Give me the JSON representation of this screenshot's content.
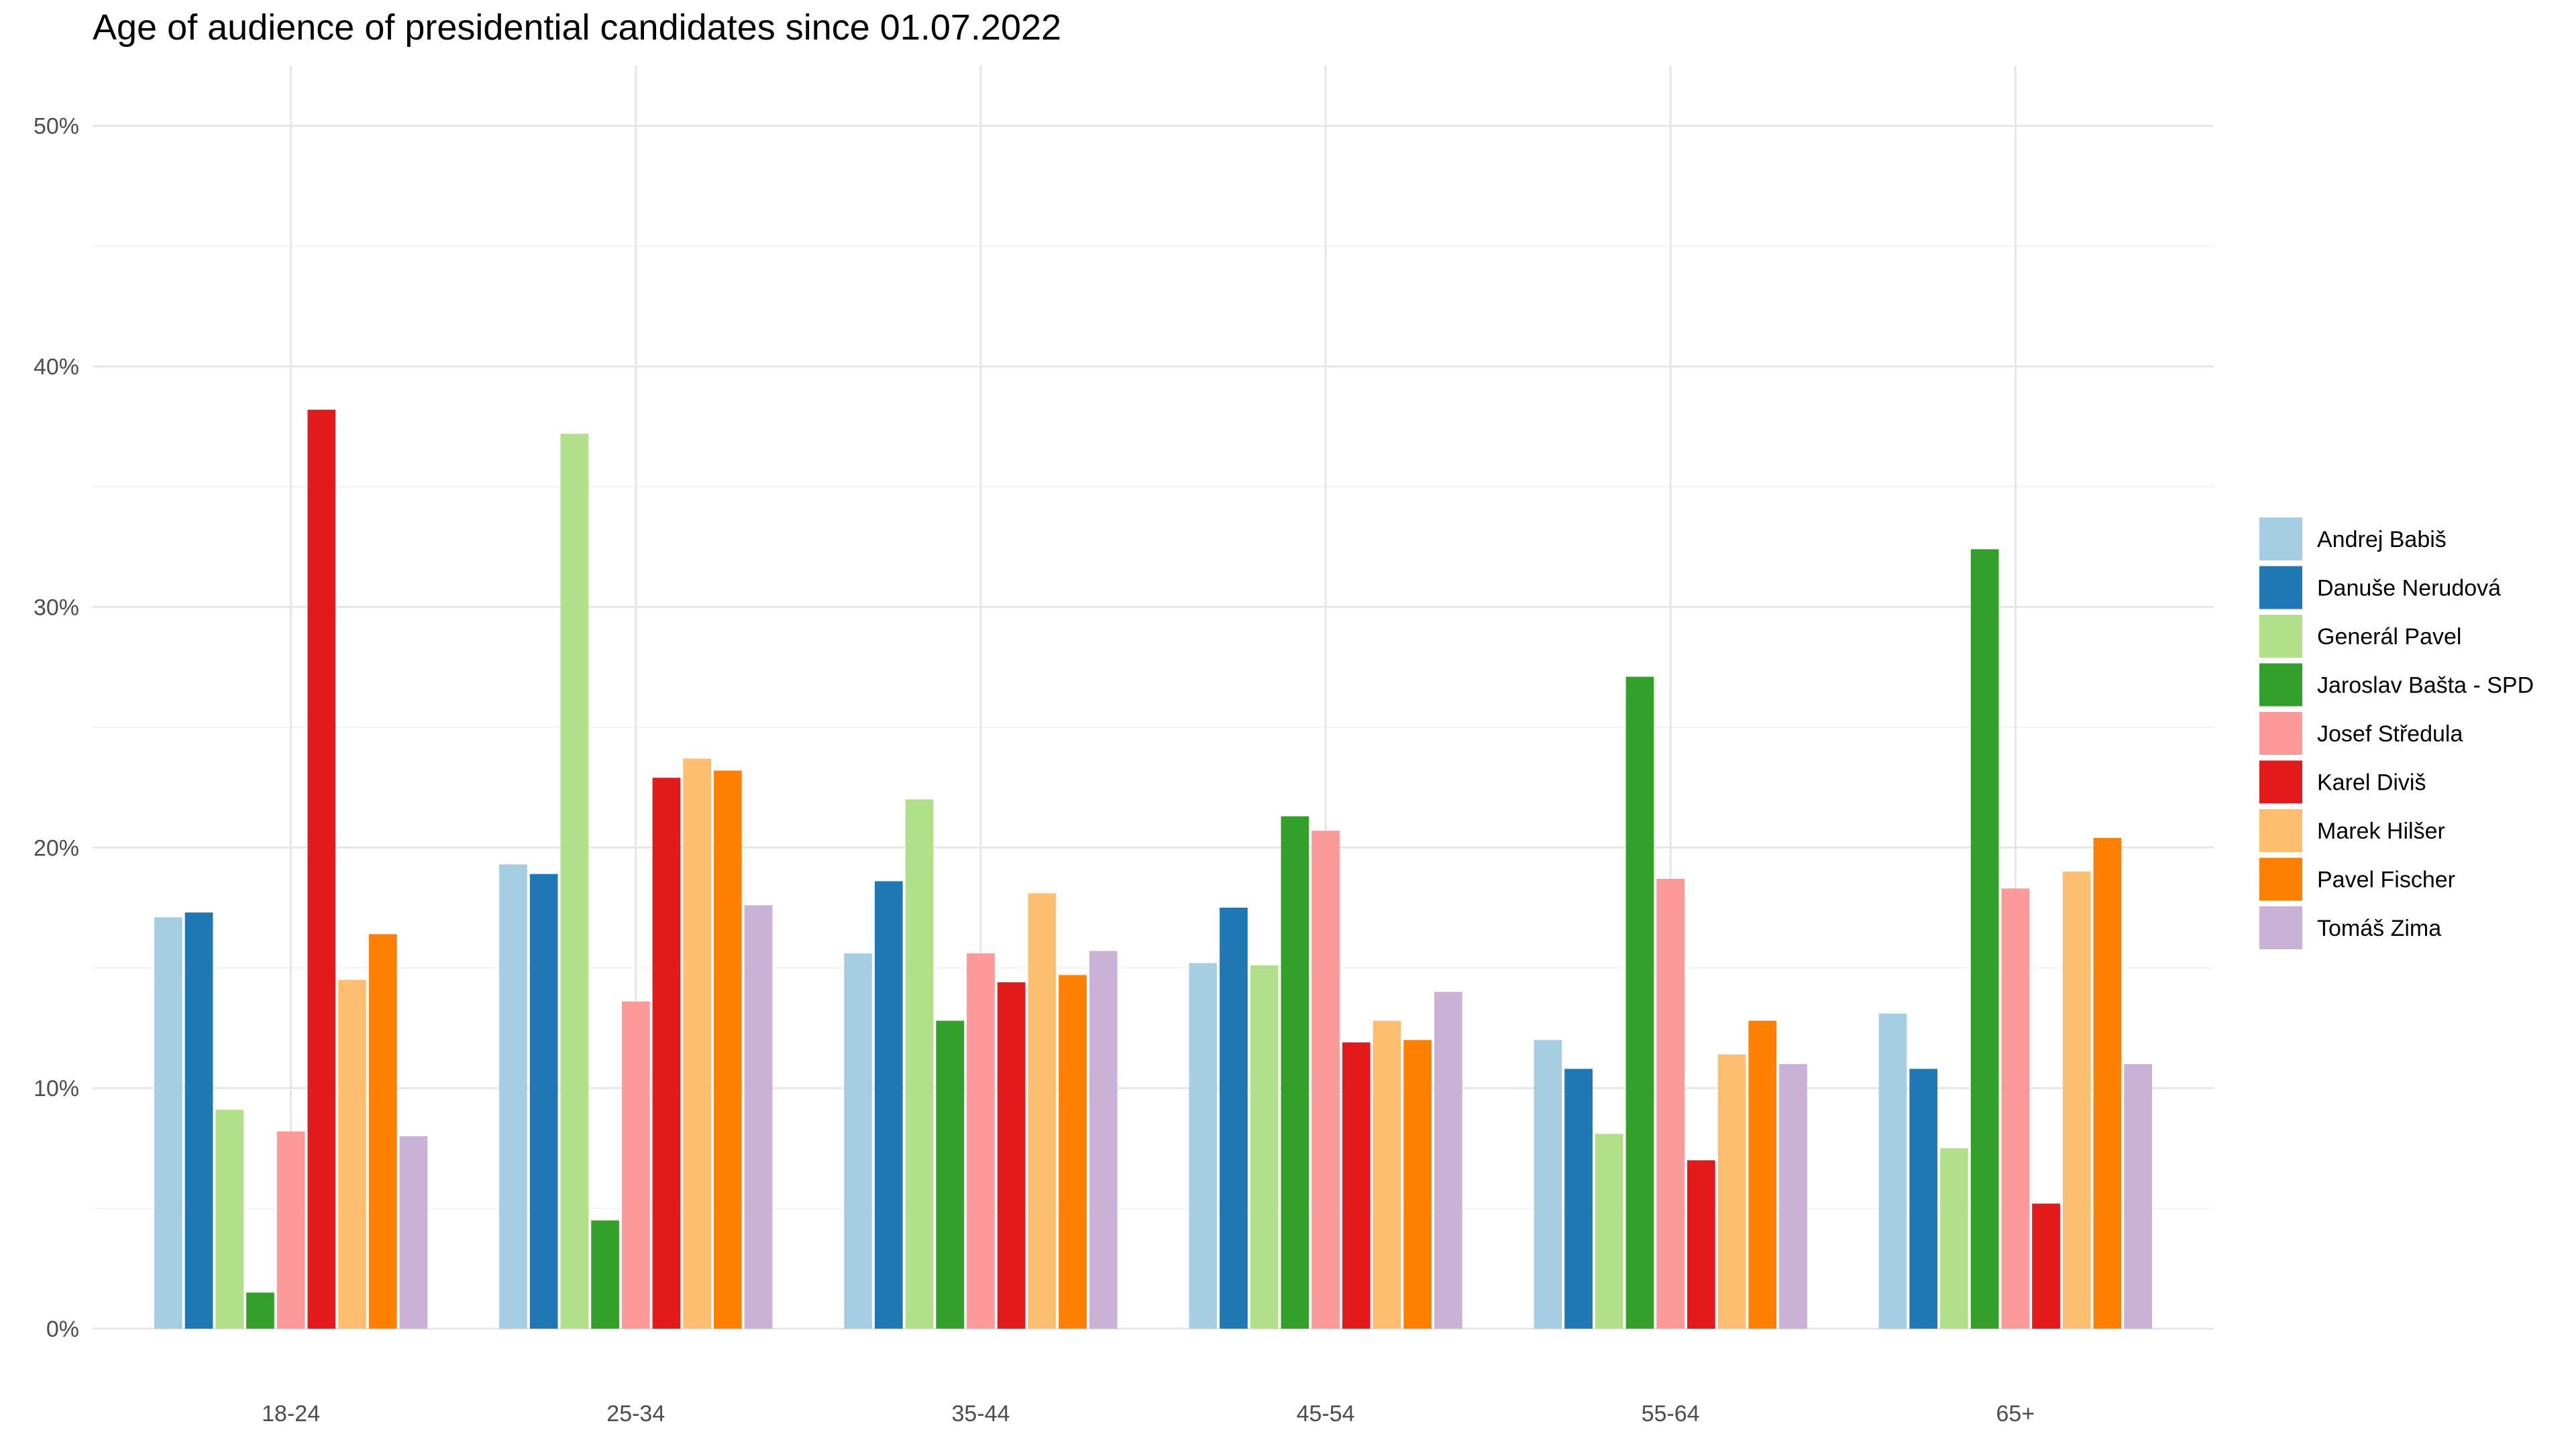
{
  "chart_data": {
    "type": "bar",
    "title": "Age of audience of presidential candidates since 01.07.2022",
    "xlabel": "",
    "ylabel": "",
    "categories": [
      "18-24",
      "25-34",
      "35-44",
      "45-54",
      "55-64",
      "65+"
    ],
    "ylim": [
      0,
      50
    ],
    "yticks": [
      0,
      10,
      20,
      30,
      40,
      50
    ],
    "ytick_labels": [
      "0%",
      "10%",
      "20%",
      "30%",
      "40%",
      "50%"
    ],
    "grid": true,
    "legend_position": "right",
    "series": [
      {
        "name": "Andrej Babiš",
        "color": "#a6cee3",
        "values": [
          17.1,
          19.3,
          15.6,
          15.2,
          12.0,
          13.1
        ]
      },
      {
        "name": "Danuše Nerudová",
        "color": "#1f78b4",
        "values": [
          17.3,
          18.9,
          18.6,
          17.5,
          10.8,
          10.8
        ]
      },
      {
        "name": "Generál Pavel",
        "color": "#b2df8a",
        "values": [
          9.1,
          37.2,
          22.0,
          15.1,
          8.1,
          7.5
        ]
      },
      {
        "name": "Jaroslav Bašta - SPD",
        "color": "#33a02c",
        "values": [
          1.5,
          4.5,
          12.8,
          21.3,
          27.1,
          32.4
        ]
      },
      {
        "name": "Josef Středula",
        "color": "#fb9a99",
        "values": [
          8.2,
          13.6,
          15.6,
          20.7,
          18.7,
          18.3
        ]
      },
      {
        "name": "Karel Diviš",
        "color": "#e31a1c",
        "values": [
          38.2,
          22.9,
          14.4,
          11.9,
          7.0,
          5.2
        ]
      },
      {
        "name": "Marek Hilšer",
        "color": "#fdbf6f",
        "values": [
          14.5,
          23.7,
          18.1,
          12.8,
          11.4,
          19.0
        ]
      },
      {
        "name": "Pavel Fischer",
        "color": "#ff7f00",
        "values": [
          16.4,
          23.2,
          14.7,
          12.0,
          12.8,
          20.4
        ]
      },
      {
        "name": "Tomáš Zima",
        "color": "#cab2d6",
        "values": [
          8.0,
          17.6,
          15.7,
          14.0,
          11.0,
          11.0
        ]
      }
    ]
  }
}
